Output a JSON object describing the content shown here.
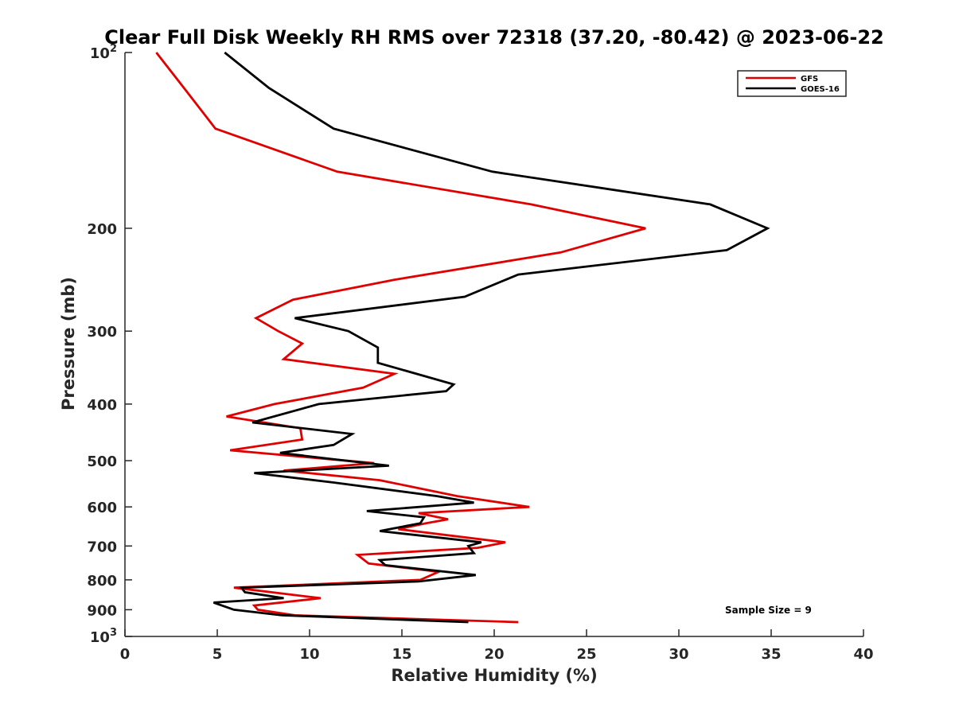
{
  "chart_data": {
    "type": "line",
    "title": "Clear Full Disk Weekly RH RMS over 72318 (37.20, -80.42) @ 2023-06-22",
    "xlabel": "Relative Humidity (%)",
    "ylabel": "Pressure (mb)",
    "xlim": [
      0,
      40
    ],
    "ylim": [
      100,
      1000
    ],
    "yscale": "log",
    "y_reversed": true,
    "grid": false,
    "x_ticks": [
      "0",
      "5",
      "10",
      "15",
      "20",
      "25",
      "30",
      "35",
      "40"
    ],
    "y_ticks": [
      {
        "value": 100,
        "label": "10",
        "sup": "2"
      },
      {
        "value": 200,
        "label": "200"
      },
      {
        "value": 300,
        "label": "300"
      },
      {
        "value": 400,
        "label": "400"
      },
      {
        "value": 500,
        "label": "500"
      },
      {
        "value": 600,
        "label": "600"
      },
      {
        "value": 700,
        "label": "700"
      },
      {
        "value": 800,
        "label": "800"
      },
      {
        "value": 900,
        "label": "900"
      },
      {
        "value": 1000,
        "label": "10",
        "sup": "3"
      }
    ],
    "legend_position": "top-right",
    "annotation": "Sample Size = 9",
    "series": [
      {
        "name": "GFS",
        "color": "#e00000",
        "points": [
          [
            1.7,
            100
          ],
          [
            3.2,
            115
          ],
          [
            4.9,
            135
          ],
          [
            11.5,
            160
          ],
          [
            22.0,
            182
          ],
          [
            28.2,
            200
          ],
          [
            23.6,
            220
          ],
          [
            14.6,
            245
          ],
          [
            9.1,
            265
          ],
          [
            7.1,
            285
          ],
          [
            8.3,
            300
          ],
          [
            9.6,
            315
          ],
          [
            8.6,
            335
          ],
          [
            14.6,
            355
          ],
          [
            12.9,
            375
          ],
          [
            8.1,
            400
          ],
          [
            5.5,
            420
          ],
          [
            9.5,
            440
          ],
          [
            9.6,
            460
          ],
          [
            5.7,
            480
          ],
          [
            13.5,
            505
          ],
          [
            8.6,
            520
          ],
          [
            13.8,
            540
          ],
          [
            18.0,
            575
          ],
          [
            21.9,
            600
          ],
          [
            15.9,
            615
          ],
          [
            17.5,
            630
          ],
          [
            16.3,
            640
          ],
          [
            14.8,
            655
          ],
          [
            20.6,
            690
          ],
          [
            19.1,
            705
          ],
          [
            12.6,
            725
          ],
          [
            13.2,
            750
          ],
          [
            17.0,
            775
          ],
          [
            16.0,
            800
          ],
          [
            5.9,
            825
          ],
          [
            10.6,
            860
          ],
          [
            7.0,
            885
          ],
          [
            7.2,
            900
          ],
          [
            9.2,
            920
          ],
          [
            21.3,
            945
          ]
        ]
      },
      {
        "name": "GOES-16",
        "color": "#000000",
        "points": [
          [
            5.4,
            100
          ],
          [
            7.8,
            115
          ],
          [
            11.3,
            135
          ],
          [
            19.9,
            160
          ],
          [
            31.7,
            182
          ],
          [
            34.8,
            200
          ],
          [
            32.6,
            218
          ],
          [
            21.3,
            240
          ],
          [
            18.4,
            262
          ],
          [
            9.2,
            285
          ],
          [
            12.1,
            300
          ],
          [
            13.7,
            320
          ],
          [
            13.7,
            340
          ],
          [
            17.8,
            370
          ],
          [
            17.4,
            380
          ],
          [
            10.5,
            400
          ],
          [
            6.9,
            430
          ],
          [
            12.3,
            450
          ],
          [
            11.3,
            470
          ],
          [
            8.4,
            485
          ],
          [
            14.3,
            510
          ],
          [
            7.0,
            525
          ],
          [
            11.3,
            545
          ],
          [
            16.9,
            575
          ],
          [
            18.9,
            590
          ],
          [
            13.1,
            610
          ],
          [
            16.2,
            625
          ],
          [
            16.0,
            640
          ],
          [
            13.8,
            660
          ],
          [
            19.3,
            690
          ],
          [
            18.6,
            700
          ],
          [
            18.9,
            720
          ],
          [
            13.8,
            740
          ],
          [
            14.1,
            755
          ],
          [
            19.0,
            785
          ],
          [
            15.9,
            805
          ],
          [
            6.3,
            825
          ],
          [
            6.5,
            840
          ],
          [
            8.6,
            860
          ],
          [
            4.8,
            875
          ],
          [
            5.9,
            900
          ],
          [
            8.5,
            920
          ],
          [
            18.6,
            945
          ]
        ]
      }
    ]
  }
}
